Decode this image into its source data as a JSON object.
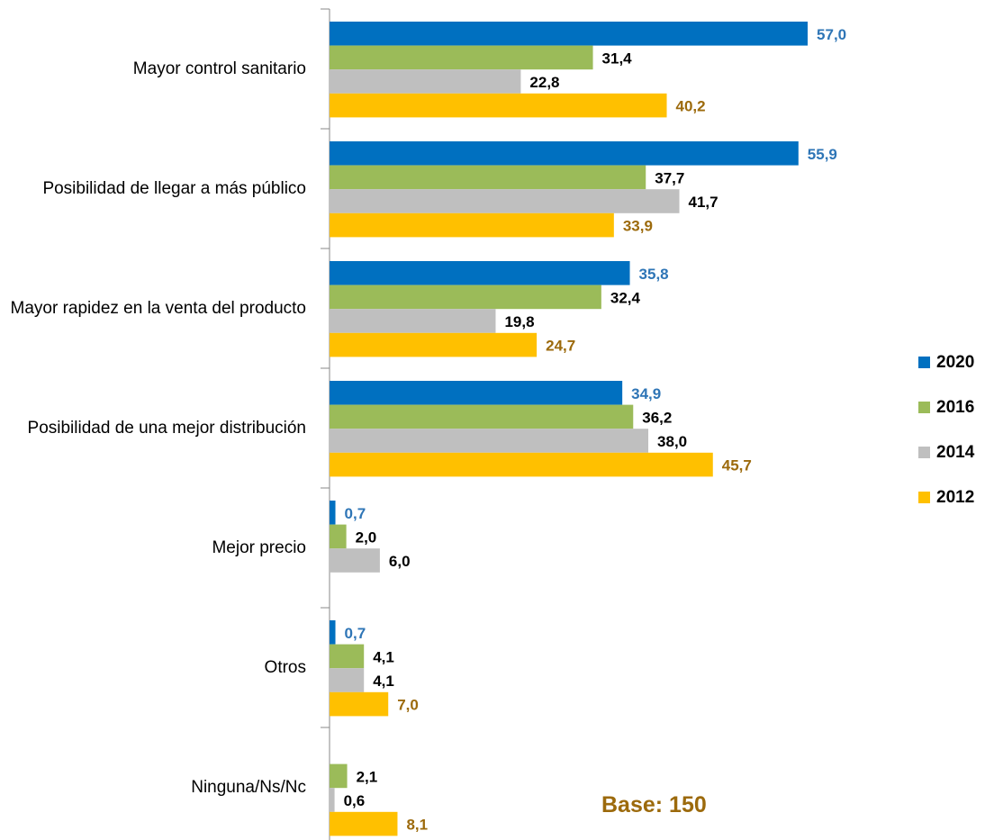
{
  "chart_data": {
    "type": "hbar",
    "categories": [
      "Mayor control sanitario",
      "Posibilidad de llegar a más público",
      "Mayor rapidez en la venta del producto",
      "Posibilidad de una mejor distribución",
      "Mejor precio",
      "Otros",
      "Ninguna/Ns/Nc"
    ],
    "series": [
      {
        "name": "2020",
        "color": "#0070c0",
        "label_color": "#2e75b6",
        "values": [
          57.0,
          55.9,
          35.8,
          34.9,
          0.7,
          0.7,
          null
        ],
        "value_labels": [
          "57,0",
          "55,9",
          "35,8",
          "34,9",
          "0,7",
          "0,7",
          null
        ]
      },
      {
        "name": "2016",
        "color": "#9bbb59",
        "label_color": "#000000",
        "values": [
          31.4,
          37.7,
          32.4,
          36.2,
          2.0,
          4.1,
          2.1
        ],
        "value_labels": [
          "31,4",
          "37,7",
          "32,4",
          "36,2",
          "2,0",
          "4,1",
          "2,1"
        ]
      },
      {
        "name": "2014",
        "color": "#bfbfbf",
        "label_color": "#000000",
        "values": [
          22.8,
          41.7,
          19.8,
          38.0,
          6.0,
          4.1,
          0.6
        ],
        "value_labels": [
          "22,8",
          "41,7",
          "19,8",
          "38,0",
          "6,0",
          "4,1",
          "0,6"
        ]
      },
      {
        "name": "2012",
        "color": "#ffc000",
        "label_color": "#9c6a0c",
        "values": [
          40.2,
          33.9,
          24.7,
          45.7,
          null,
          7.0,
          8.1
        ],
        "value_labels": [
          "40,2",
          "33,9",
          "24,7",
          "45,7",
          null,
          "7,0",
          "8,1"
        ]
      }
    ],
    "xlim": [
      0,
      60
    ],
    "annotation": "Base: 150",
    "legend": "right"
  }
}
